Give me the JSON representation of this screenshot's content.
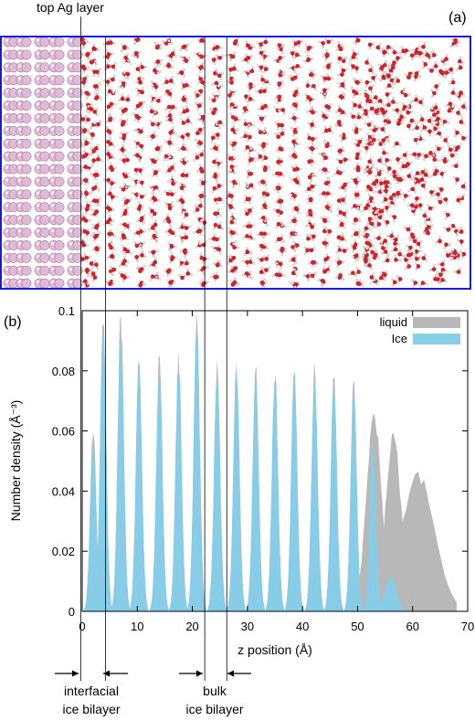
{
  "panel_a": {
    "label": "(a)",
    "annotation": "top Ag layer",
    "colors": {
      "frame": "#1a1adc",
      "oxygen": "#d81f26",
      "hydrogen": "#e8e8e8",
      "bond": "#555555",
      "ag_atom": "#e2b9d6"
    }
  },
  "panel_b": {
    "label": "(b)",
    "annotations": {
      "interfacial": [
        "interfacial",
        "ice bilayer"
      ],
      "bulk": [
        "bulk",
        "ice bilayer"
      ]
    }
  },
  "chart_data": {
    "type": "area",
    "title": "",
    "xlabel": "z position (Å)",
    "ylabel": "Number density (Å⁻³)",
    "xlim": [
      0,
      70
    ],
    "ylim": [
      0,
      0.1
    ],
    "xticks": [
      0,
      10,
      20,
      30,
      40,
      50,
      60,
      70
    ],
    "xtick_labels": [
      "0",
      "10",
      "20",
      "30",
      "40",
      "50",
      "60",
      "70"
    ],
    "yticks": [
      0,
      0.02,
      0.04,
      0.06,
      0.08,
      0.1
    ],
    "ytick_labels": [
      "0",
      "0.02",
      "0.04",
      "0.06",
      "0.08",
      "0.1"
    ],
    "legend_position": "top-right",
    "vertical_lines": [
      0,
      4.5,
      22.5,
      26.5
    ],
    "series": [
      {
        "name": "liquid",
        "color": "#b8b8b8",
        "peaks": [
          {
            "x": 2.0,
            "y": 0.062
          },
          {
            "x": 3.8,
            "y": 0.1
          },
          {
            "x": 7.0,
            "y": 0.1
          },
          {
            "x": 10.3,
            "y": 0.086
          },
          {
            "x": 14.0,
            "y": 0.086
          },
          {
            "x": 17.5,
            "y": 0.086
          },
          {
            "x": 20.8,
            "y": 0.1
          },
          {
            "x": 24.5,
            "y": 0.084
          },
          {
            "x": 28.0,
            "y": 0.084
          },
          {
            "x": 31.5,
            "y": 0.082
          },
          {
            "x": 35.0,
            "y": 0.082
          },
          {
            "x": 38.5,
            "y": 0.082
          },
          {
            "x": 42.2,
            "y": 0.082
          },
          {
            "x": 45.7,
            "y": 0.08
          },
          {
            "x": 49.3,
            "y": 0.078
          },
          {
            "x": 53.0,
            "y": 0.066
          },
          {
            "x": 56.5,
            "y": 0.06
          },
          {
            "x": 61.0,
            "y": 0.046
          }
        ]
      },
      {
        "name": "Ice",
        "color": "#87cde8",
        "peaks": [
          {
            "x": 2.0,
            "y": 0.058
          },
          {
            "x": 3.8,
            "y": 0.098
          },
          {
            "x": 7.0,
            "y": 0.096
          },
          {
            "x": 10.3,
            "y": 0.084
          },
          {
            "x": 14.0,
            "y": 0.084
          },
          {
            "x": 17.5,
            "y": 0.084
          },
          {
            "x": 20.8,
            "y": 0.098
          },
          {
            "x": 24.5,
            "y": 0.082
          },
          {
            "x": 28.0,
            "y": 0.082
          },
          {
            "x": 31.5,
            "y": 0.08
          },
          {
            "x": 35.0,
            "y": 0.08
          },
          {
            "x": 38.5,
            "y": 0.08
          },
          {
            "x": 42.2,
            "y": 0.08
          },
          {
            "x": 45.7,
            "y": 0.078
          },
          {
            "x": 49.3,
            "y": 0.076
          },
          {
            "x": 52.8,
            "y": 0.056
          },
          {
            "x": 56.0,
            "y": 0.012
          }
        ]
      }
    ]
  }
}
